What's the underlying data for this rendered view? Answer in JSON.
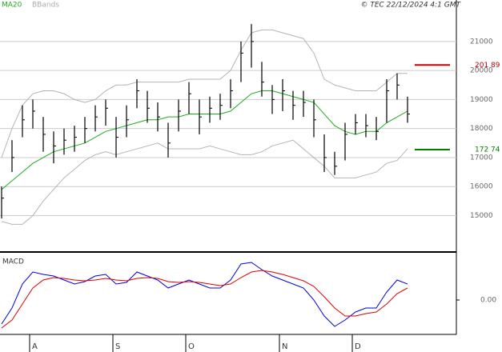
{
  "chart_data": {
    "type": "ohlc",
    "legend": [
      "MA20",
      "BBands"
    ],
    "credit": "© TEC 22/12/2024 4:1 GMT",
    "categories": [
      null,
      null,
      null,
      "A",
      null,
      null,
      null,
      null,
      null,
      null,
      null,
      "S",
      null,
      null,
      null,
      null,
      null,
      null,
      "O",
      null,
      null,
      null,
      null,
      null,
      null,
      null,
      null,
      "N",
      null,
      null,
      null,
      null,
      null,
      null,
      "D",
      null,
      null,
      null,
      null,
      null
    ],
    "high": [
      16000,
      17600,
      18800,
      19000,
      18400,
      17900,
      18000,
      18100,
      18400,
      18800,
      19000,
      18400,
      18800,
      19700,
      19300,
      18900,
      18200,
      19000,
      19600,
      19000,
      19100,
      19200,
      19700,
      21000,
      21600,
      20300,
      19500,
      19700,
      19300,
      19300,
      19000,
      17800,
      17200,
      18200,
      18500,
      18500,
      18400,
      19700,
      19900,
      19100
    ],
    "low": [
      14900,
      16500,
      17700,
      18000,
      17200,
      16800,
      17100,
      17200,
      17500,
      17900,
      18100,
      17000,
      17700,
      18700,
      18200,
      17900,
      17000,
      17900,
      18500,
      17800,
      18200,
      18300,
      18700,
      19600,
      20100,
      19100,
      18500,
      18600,
      18300,
      18400,
      17700,
      16500,
      16400,
      16900,
      17800,
      17700,
      17600,
      18200,
      19000,
      18200
    ],
    "close": [
      15600,
      17000,
      18300,
      18600,
      17800,
      17400,
      17600,
      17700,
      18000,
      18400,
      18700,
      17700,
      18300,
      19300,
      18700,
      18400,
      17500,
      18600,
      19200,
      18400,
      18700,
      18800,
      19300,
      20600,
      21000,
      19600,
      19000,
      19300,
      18800,
      18900,
      18300,
      17000,
      16700,
      17800,
      18200,
      18100,
      17900,
      19300,
      19500,
      18500
    ],
    "color": "#000000",
    "series": [
      {
        "name": "MA20",
        "color": "#1faa1f",
        "values": [
          15900,
          16200,
          16500,
          16800,
          17000,
          17200,
          17300,
          17400,
          17500,
          17700,
          17900,
          18000,
          18100,
          18200,
          18300,
          18300,
          18400,
          18400,
          18500,
          18500,
          18500,
          18500,
          18600,
          18900,
          19200,
          19300,
          19300,
          19200,
          19100,
          19000,
          18900,
          18500,
          18100,
          17900,
          17800,
          17900,
          17900,
          18200,
          18400,
          18600
        ]
      },
      {
        "name": "BBands",
        "color": "#b4b4b4",
        "values": [
          17000,
          18000,
          18800,
          19200,
          19300,
          19300,
          19200,
          19000,
          18900,
          19000,
          19300,
          19500,
          19500,
          19600,
          19600,
          19600,
          19600,
          19600,
          19700,
          19700,
          19700,
          19700,
          20000,
          20700,
          21300,
          21400,
          21400,
          21300,
          21200,
          21100,
          20600,
          19700,
          19500,
          19400,
          19300,
          19300,
          19300,
          19600,
          19900,
          19900
        ]
      },
      {
        "name": "BBands",
        "color": "#b4b4b4",
        "values": [
          14800,
          14700,
          14700,
          15000,
          15500,
          15900,
          16300,
          16600,
          16900,
          17100,
          17200,
          17100,
          17200,
          17300,
          17400,
          17500,
          17300,
          17300,
          17300,
          17300,
          17400,
          17300,
          17200,
          17100,
          17100,
          17200,
          17400,
          17500,
          17600,
          17300,
          17000,
          16700,
          16300,
          16300,
          16300,
          16400,
          16500,
          16800,
          16900,
          17300
        ]
      }
    ],
    "levels": [
      {
        "value": 20189,
        "value_label": "201 89",
        "color": "#c00000"
      },
      {
        "value": 17274,
        "value_label": "172 74",
        "color": "#008000"
      }
    ],
    "ylim": [
      13800,
      22430
    ],
    "yticks": [
      15000,
      16000,
      17000,
      18000,
      19000,
      20000,
      21000
    ],
    "grid": true,
    "macd": {
      "title": "MACD",
      "series": [
        {
          "name": "MACD",
          "color": "#0000dd",
          "values": [
            -300,
            -100,
            200,
            350,
            320,
            300,
            250,
            200,
            230,
            300,
            320,
            200,
            220,
            350,
            300,
            250,
            150,
            200,
            250,
            200,
            150,
            150,
            250,
            450,
            470,
            380,
            300,
            250,
            200,
            150,
            0,
            -200,
            -330,
            -250,
            -150,
            -100,
            -100,
            100,
            250,
            200
          ]
        },
        {
          "name": "Signal",
          "color": "#dd0000",
          "values": [
            -350,
            -250,
            -50,
            150,
            250,
            280,
            270,
            250,
            240,
            250,
            270,
            250,
            240,
            270,
            280,
            270,
            230,
            220,
            230,
            220,
            200,
            180,
            200,
            280,
            350,
            370,
            350,
            320,
            280,
            240,
            170,
            40,
            -100,
            -200,
            -200,
            -170,
            -150,
            -50,
            80,
            150
          ]
        }
      ],
      "ylim": [
        -430,
        570
      ],
      "yticks": [
        {
          "value": 0,
          "label": "0.00"
        }
      ]
    }
  }
}
